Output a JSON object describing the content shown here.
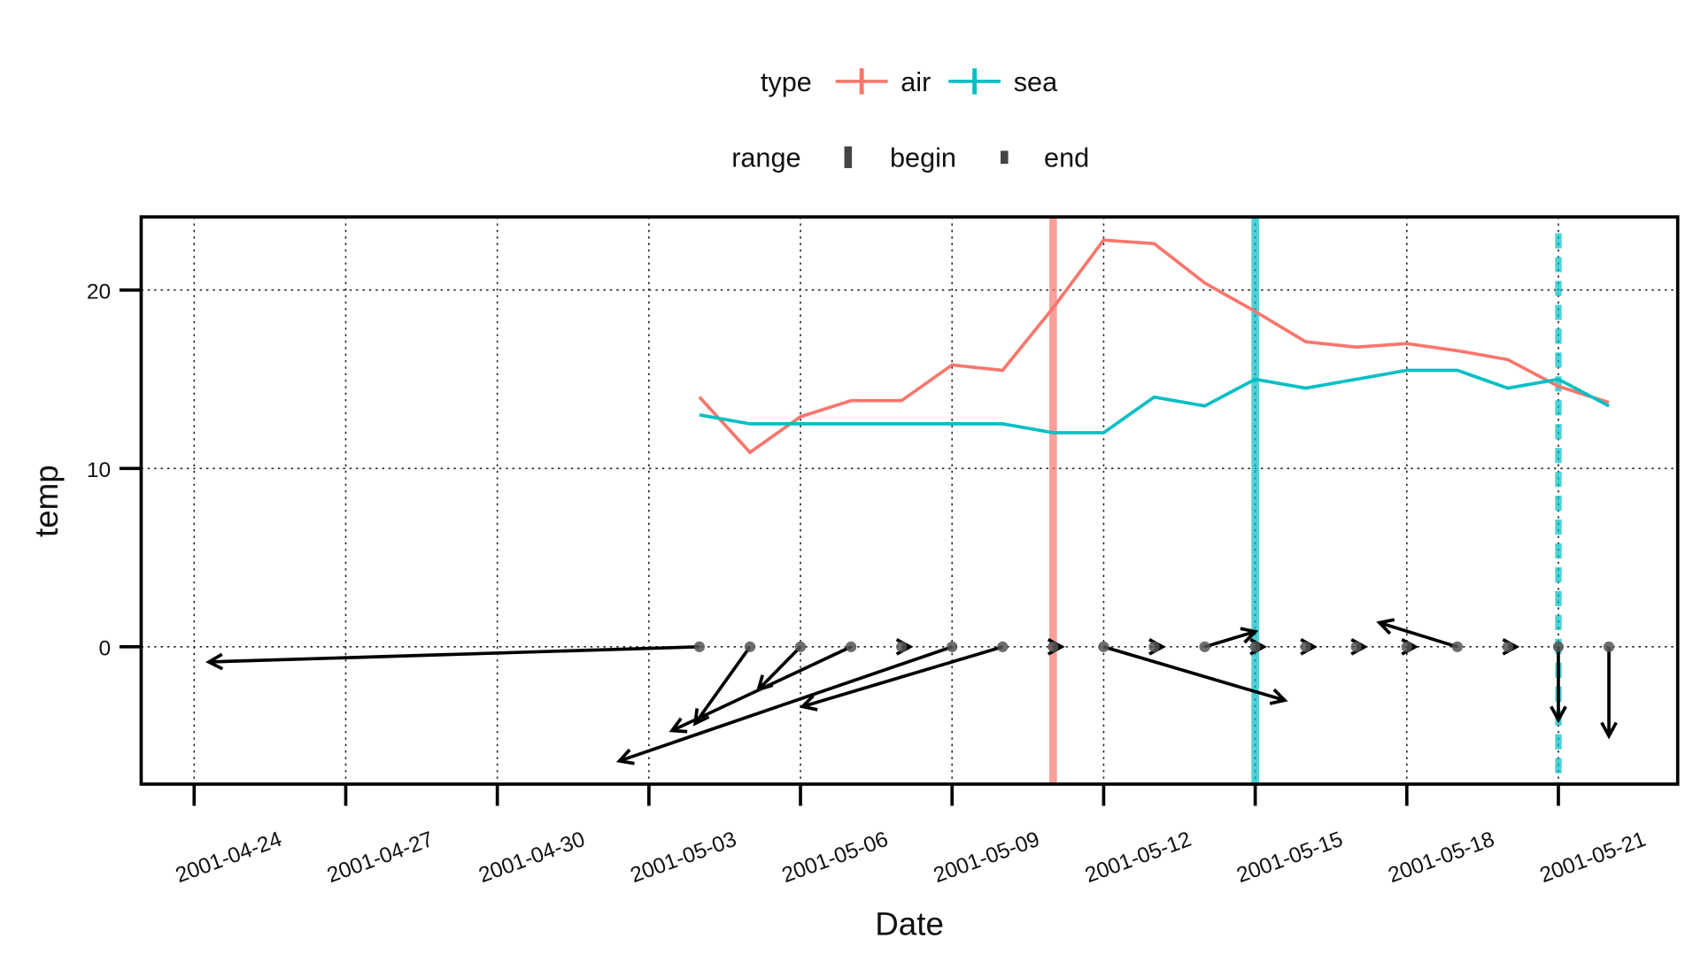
{
  "chart_data": {
    "type": "line",
    "x_label": "Date",
    "y_label": "temp",
    "x": [
      "2001-05-04",
      "2001-05-05",
      "2001-05-06",
      "2001-05-07",
      "2001-05-08",
      "2001-05-09",
      "2001-05-10",
      "2001-05-11",
      "2001-05-12",
      "2001-05-13",
      "2001-05-14",
      "2001-05-15",
      "2001-05-16",
      "2001-05-17",
      "2001-05-18",
      "2001-05-19",
      "2001-05-20",
      "2001-05-21",
      "2001-05-22"
    ],
    "series": [
      {
        "name": "air",
        "color": "#f8766d",
        "values": [
          14,
          10.9,
          12.9,
          13.8,
          13.8,
          15.8,
          15.5,
          19,
          22.8,
          22.6,
          20.4,
          18.8,
          17.1,
          16.8,
          17.0,
          16.6,
          16.1,
          14.6,
          13.7
        ]
      },
      {
        "name": "sea",
        "color": "#00bfc4",
        "values": [
          13,
          12.5,
          12.5,
          12.5,
          12.5,
          12.5,
          12.5,
          12,
          12,
          14,
          13.5,
          15,
          14.5,
          15,
          15.5,
          15.5,
          14.5,
          15,
          13.5
        ]
      }
    ],
    "arrows": {
      "y": [
        0,
        0,
        0,
        0,
        0,
        0,
        0,
        0,
        0,
        0,
        0,
        0,
        0,
        0,
        0,
        0,
        0,
        0,
        0
      ],
      "xend": [
        "2001-04-24T07:00Z",
        "2001-05-03T22:00Z",
        "2001-05-05T04:00Z",
        "2001-05-03T11:00Z",
        "2001-05-08T04:00Z",
        "2001-05-02T10:00Z",
        "2001-05-06T01:00Z",
        "2001-05-11T04:00Z",
        "2001-05-15T14:00Z",
        "2001-05-13T04:00Z",
        "2001-05-15T00:00Z",
        "2001-05-15T04:00Z",
        "2001-05-16T04:00Z",
        "2001-05-17T04:00Z",
        "2001-05-18T04:00Z",
        "2001-05-17T11:00Z",
        "2001-05-20T04:00Z",
        "2001-05-21T00:00Z",
        "2001-05-22T00:00Z"
      ],
      "yend": [
        -0.85,
        -4.3,
        -2.4,
        -4.7,
        0,
        -6.4,
        -3.35,
        0,
        -3.0,
        0,
        0.85,
        0,
        0,
        0,
        0,
        1.35,
        0,
        -4.1,
        -5.0
      ]
    },
    "vlines": [
      {
        "x": "2001-05-11",
        "type": "air",
        "range": "begin"
      },
      {
        "x": "2001-05-15",
        "type": "sea",
        "range": "begin"
      },
      {
        "x": "2001-05-21",
        "type": "sea",
        "range": "end"
      }
    ],
    "legend": {
      "type_title": "type",
      "range_title": "range",
      "range_entries": [
        "begin",
        "end"
      ]
    },
    "xlim": [
      "2001-04-22T22:50Z",
      "2001-05-23T08:40Z"
    ],
    "xticks": [
      "2001-04-24",
      "2001-04-27",
      "2001-04-30",
      "2001-05-03",
      "2001-05-06",
      "2001-05-09",
      "2001-05-12",
      "2001-05-15",
      "2001-05-18",
      "2001-05-21"
    ],
    "ylim": [
      -7.7,
      24.1
    ],
    "yticks": [
      0,
      10,
      20
    ],
    "grid": true
  }
}
